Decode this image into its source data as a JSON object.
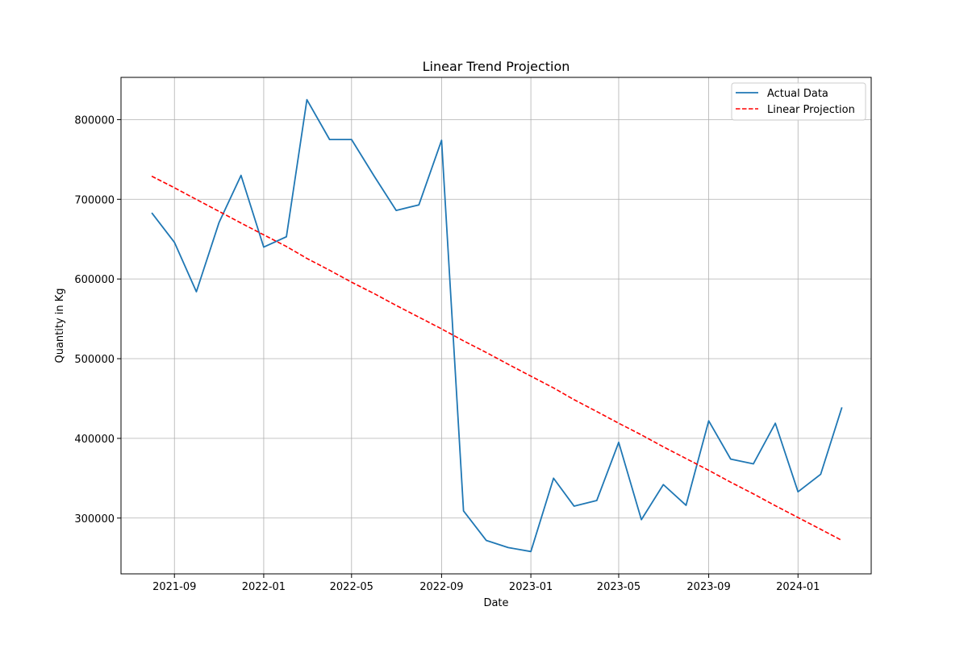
{
  "chart_data": {
    "type": "line",
    "title": "Linear Trend Projection",
    "xlabel": "Date",
    "ylabel": "Quantity in Kg",
    "x_tick_labels": [
      "2021-09",
      "2022-01",
      "2022-05",
      "2022-09",
      "2023-01",
      "2023-05",
      "2023-09",
      "2024-01"
    ],
    "y_ticks": [
      300000,
      400000,
      500000,
      600000,
      700000,
      800000
    ],
    "y_tick_labels": [
      "300000",
      "400000",
      "500000",
      "600000",
      "700000",
      "800000"
    ],
    "xlim": [
      "2021-06-20",
      "2024-04-10"
    ],
    "ylim": [
      230000,
      853000
    ],
    "grid": true,
    "legend_position": "top-right",
    "x": [
      "2021-08-01",
      "2021-09-01",
      "2021-10-01",
      "2021-11-01",
      "2021-12-01",
      "2022-01-01",
      "2022-02-01",
      "2022-03-01",
      "2022-04-01",
      "2022-05-01",
      "2022-06-01",
      "2022-07-01",
      "2022-08-01",
      "2022-09-01",
      "2022-10-01",
      "2022-11-01",
      "2022-12-01",
      "2023-01-01",
      "2023-02-01",
      "2023-03-01",
      "2023-04-01",
      "2023-05-01",
      "2023-06-01",
      "2023-07-01",
      "2023-08-01",
      "2023-09-01",
      "2023-10-01",
      "2023-11-01",
      "2023-12-01",
      "2024-01-01",
      "2024-02-01",
      "2024-03-01"
    ],
    "series": [
      {
        "name": "Actual Data",
        "color": "#1f77b4",
        "style": "solid",
        "values": [
          683000,
          646000,
          584000,
          671000,
          730000,
          640000,
          653000,
          825000,
          775000,
          775000,
          729000,
          686000,
          693000,
          774000,
          309000,
          272000,
          263000,
          258000,
          350000,
          315000,
          322000,
          395000,
          298000,
          342000,
          316000,
          422000,
          374000,
          368000,
          419000,
          333000,
          355000,
          439000
        ]
      },
      {
        "name": "Linear Projection",
        "color": "#ff0000",
        "style": "dashed",
        "values": [
          729000,
          714500,
          699800,
          684800,
          670200,
          655400,
          640800,
          625800,
          611000,
          596000,
          581600,
          566800,
          552100,
          537400,
          522400,
          507800,
          493000,
          478100,
          463300,
          448600,
          433700,
          419000,
          404400,
          389400,
          374700,
          359900,
          345000,
          330400,
          315500,
          300700,
          285900,
          271900
        ]
      }
    ]
  }
}
